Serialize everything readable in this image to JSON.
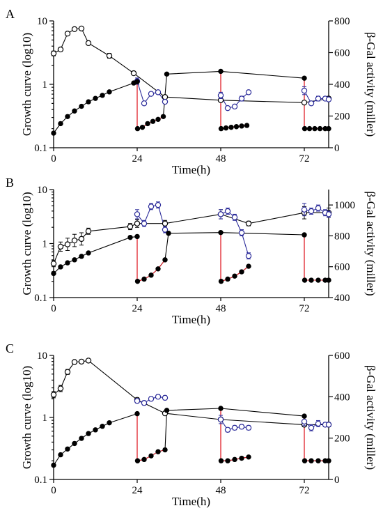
{
  "figure": {
    "xlabel": "Time(h)",
    "ylabel_left": "Growth curve (log10)",
    "ylabel_right_prefix": "β-Gal activity (",
    "ylabel_right_suffix": ")"
  },
  "colors": {
    "growth": "#000000",
    "galactosidase": "#2b2b9a",
    "galactosidase_connectors": "#2b2b9a",
    "transfer_line": "#e0202a",
    "growth_line": "#000000"
  },
  "chart_data": [
    {
      "panel": "A",
      "type": "line",
      "xlabel": "Time(h)",
      "ylabel": "Growth curve (log10)",
      "y2label": "β-Gal activity (miller)",
      "right_unit": "miller",
      "xlim": [
        0,
        79
      ],
      "ylim": [
        0.1,
        10
      ],
      "yscale": "log",
      "y2lim": [
        0,
        800
      ],
      "x_ticks": [
        0,
        24,
        48,
        72
      ],
      "y_ticks": [
        0.1,
        1,
        10
      ],
      "y2_ticks": [
        0,
        200,
        400,
        600,
        800
      ],
      "growth_curve": {
        "segments": [
          [
            [
              0,
              0.17
            ],
            [
              2,
              0.24
            ],
            [
              4,
              0.31
            ],
            [
              6,
              0.38
            ],
            [
              8,
              0.45
            ],
            [
              10,
              0.53
            ],
            [
              12,
              0.6
            ],
            [
              14,
              0.67
            ],
            [
              16,
              0.76
            ],
            [
              23,
              1.05
            ],
            [
              24,
              1.1
            ]
          ],
          [
            [
              24.1,
              0.2
            ],
            [
              25.5,
              0.21
            ],
            [
              27,
              0.24
            ],
            [
              28.5,
              0.26
            ],
            [
              30,
              0.28
            ],
            [
              31.5,
              0.31
            ],
            [
              32.5,
              1.45
            ],
            [
              48,
              1.6
            ],
            [
              72,
              1.25
            ]
          ],
          [
            [
              48.1,
              0.2
            ],
            [
              49.5,
              0.205
            ],
            [
              51,
              0.21
            ],
            [
              52.5,
              0.215
            ],
            [
              54,
              0.22
            ],
            [
              55.5,
              0.225
            ]
          ],
          [
            [
              72.1,
              0.2
            ],
            [
              73.5,
              0.2
            ],
            [
              75,
              0.2
            ],
            [
              76.5,
              0.2
            ],
            [
              78,
              0.2
            ],
            [
              79,
              0.2
            ]
          ]
        ],
        "transfers": [
          [
            24,
            1.1,
            0.2
          ],
          [
            48,
            1.6,
            0.2
          ],
          [
            72,
            1.25,
            0.2
          ]
        ]
      },
      "beta_gal": {
        "main": [
          [
            0,
            595,
            15
          ],
          [
            2,
            620,
            12
          ],
          [
            4,
            720,
            10
          ],
          [
            6,
            748,
            8
          ],
          [
            8,
            752,
            8
          ],
          [
            10,
            660,
            10
          ],
          [
            16,
            580,
            15
          ],
          [
            23,
            470,
            10
          ],
          [
            32,
            320,
            10
          ],
          [
            48,
            300,
            10
          ],
          [
            72,
            285,
            10
          ],
          [
            79,
            310,
            10
          ]
        ],
        "cycles": [
          [
            [
              24,
              420,
              20
            ],
            [
              26,
              280,
              10
            ],
            [
              28,
              340,
              10
            ],
            [
              30,
              350,
              10
            ],
            [
              32,
              290,
              10
            ]
          ],
          [
            [
              48,
              330,
              20
            ],
            [
              50,
              250,
              10
            ],
            [
              52,
              260,
              10
            ],
            [
              54,
              310,
              15
            ],
            [
              56,
              350,
              10
            ]
          ],
          [
            [
              72,
              360,
              25
            ],
            [
              74,
              280,
              10
            ],
            [
              76,
              310,
              15
            ],
            [
              78,
              310,
              10
            ],
            [
              79,
              305,
              10
            ]
          ]
        ]
      }
    },
    {
      "panel": "B",
      "type": "line",
      "xlabel": "Time(h)",
      "ylabel": "Growth curve (log10)",
      "y2label": "β-Gal activity (miller)",
      "right_unit": "miller",
      "xlim": [
        0,
        79
      ],
      "ylim": [
        0.1,
        10
      ],
      "yscale": "log",
      "y2lim": [
        400,
        1100
      ],
      "x_ticks": [
        0,
        24,
        48,
        72
      ],
      "y_ticks": [
        0.1,
        1,
        10
      ],
      "y2_ticks": [
        400,
        600,
        800,
        1000
      ],
      "growth_curve": {
        "segments": [
          [
            [
              0,
              0.28
            ],
            [
              2,
              0.37
            ],
            [
              4,
              0.44
            ],
            [
              6,
              0.5
            ],
            [
              8,
              0.58
            ],
            [
              10,
              0.67
            ],
            [
              22,
              1.3
            ],
            [
              24,
              1.35
            ]
          ],
          [
            [
              24.1,
              0.2
            ],
            [
              26,
              0.22
            ],
            [
              28,
              0.26
            ],
            [
              30,
              0.34
            ],
            [
              32,
              0.5
            ],
            [
              33,
              1.55
            ],
            [
              48,
              1.6
            ],
            [
              72,
              1.45
            ]
          ],
          [
            [
              48.1,
              0.2
            ],
            [
              50,
              0.22
            ],
            [
              52,
              0.25
            ],
            [
              54,
              0.3
            ],
            [
              56,
              0.38
            ]
          ],
          [
            [
              72.1,
              0.21
            ],
            [
              74,
              0.21
            ],
            [
              76,
              0.21
            ],
            [
              78,
              0.21
            ],
            [
              79,
              0.21
            ]
          ]
        ],
        "transfers": [
          [
            24,
            1.35,
            0.2
          ],
          [
            48,
            1.6,
            0.2
          ],
          [
            72,
            1.45,
            0.21
          ]
        ]
      },
      "beta_gal": {
        "main": [
          [
            0,
            620,
            20
          ],
          [
            2,
            730,
            30
          ],
          [
            4,
            745,
            40
          ],
          [
            6,
            770,
            40
          ],
          [
            8,
            780,
            40
          ],
          [
            10,
            830,
            20
          ],
          [
            22,
            860,
            20
          ],
          [
            24,
            880,
            25
          ],
          [
            32,
            880,
            20
          ],
          [
            48,
            940,
            30
          ],
          [
            56,
            880,
            15
          ],
          [
            72,
            950,
            40
          ],
          [
            79,
            950,
            30
          ]
        ],
        "cycles": [
          [
            [
              24,
              940,
              30
            ],
            [
              26,
              880,
              20
            ],
            [
              28,
              990,
              20
            ],
            [
              30,
              1000,
              20
            ],
            [
              32,
              840,
              20
            ]
          ],
          [
            [
              48,
              940,
              30
            ],
            [
              50,
              960,
              20
            ],
            [
              52,
              920,
              20
            ],
            [
              54,
              820,
              20
            ],
            [
              56,
              670,
              20
            ]
          ],
          [
            [
              72,
              970,
              40
            ],
            [
              74,
              960,
              20
            ],
            [
              76,
              980,
              20
            ],
            [
              78,
              950,
              20
            ],
            [
              79,
              940,
              20
            ]
          ]
        ]
      }
    },
    {
      "panel": "C",
      "type": "line",
      "xlabel": "Time(h)",
      "ylabel": "Growth curve (log10)",
      "y2label": "β-Gal activity (miller)",
      "right_unit": "miller",
      "xlim": [
        0,
        79
      ],
      "ylim": [
        0.1,
        10
      ],
      "yscale": "log",
      "y2lim": [
        0,
        600
      ],
      "x_ticks": [
        0,
        24,
        48,
        72
      ],
      "y_ticks": [
        0.1,
        1,
        10
      ],
      "y2_ticks": [
        0,
        200,
        400,
        600
      ],
      "growth_curve": {
        "segments": [
          [
            [
              0,
              0.17
            ],
            [
              2,
              0.25
            ],
            [
              4,
              0.31
            ],
            [
              6,
              0.38
            ],
            [
              8,
              0.46
            ],
            [
              10,
              0.55
            ],
            [
              12,
              0.63
            ],
            [
              14,
              0.72
            ],
            [
              16,
              0.82
            ],
            [
              24,
              1.15
            ]
          ],
          [
            [
              24.1,
              0.2
            ],
            [
              26,
              0.21
            ],
            [
              28,
              0.24
            ],
            [
              30,
              0.28
            ],
            [
              32,
              0.3
            ],
            [
              32.5,
              1.3
            ],
            [
              48,
              1.4
            ],
            [
              72,
              1.05
            ]
          ],
          [
            [
              48.1,
              0.2
            ],
            [
              50,
              0.2
            ],
            [
              52,
              0.21
            ],
            [
              54,
              0.22
            ],
            [
              56,
              0.23
            ]
          ],
          [
            [
              72.1,
              0.2
            ],
            [
              74,
              0.2
            ],
            [
              76,
              0.2
            ],
            [
              78,
              0.2
            ],
            [
              79,
              0.2
            ]
          ]
        ],
        "transfers": [
          [
            24,
            1.15,
            0.2
          ],
          [
            48,
            1.4,
            0.2
          ],
          [
            72,
            1.05,
            0.2
          ]
        ]
      },
      "beta_gal": {
        "main": [
          [
            0,
            410,
            15
          ],
          [
            2,
            440,
            15
          ],
          [
            4,
            520,
            12
          ],
          [
            6,
            568,
            8
          ],
          [
            8,
            570,
            8
          ],
          [
            10,
            575,
            8
          ],
          [
            24,
            385,
            10
          ],
          [
            32,
            320,
            10
          ],
          [
            48,
            290,
            10
          ],
          [
            72,
            265,
            10
          ],
          [
            79,
            265,
            10
          ]
        ],
        "cycles": [
          [
            [
              24,
              380,
              10
            ],
            [
              26,
              370,
              10
            ],
            [
              28,
              390,
              10
            ],
            [
              30,
              400,
              10
            ],
            [
              32,
              395,
              10
            ]
          ],
          [
            [
              48,
              290,
              20
            ],
            [
              50,
              240,
              10
            ],
            [
              52,
              250,
              10
            ],
            [
              54,
              255,
              10
            ],
            [
              56,
              250,
              10
            ]
          ],
          [
            [
              72,
              280,
              20
            ],
            [
              74,
              250,
              15
            ],
            [
              76,
              270,
              15
            ],
            [
              78,
              265,
              10
            ],
            [
              79,
              265,
              10
            ]
          ]
        ]
      }
    }
  ]
}
